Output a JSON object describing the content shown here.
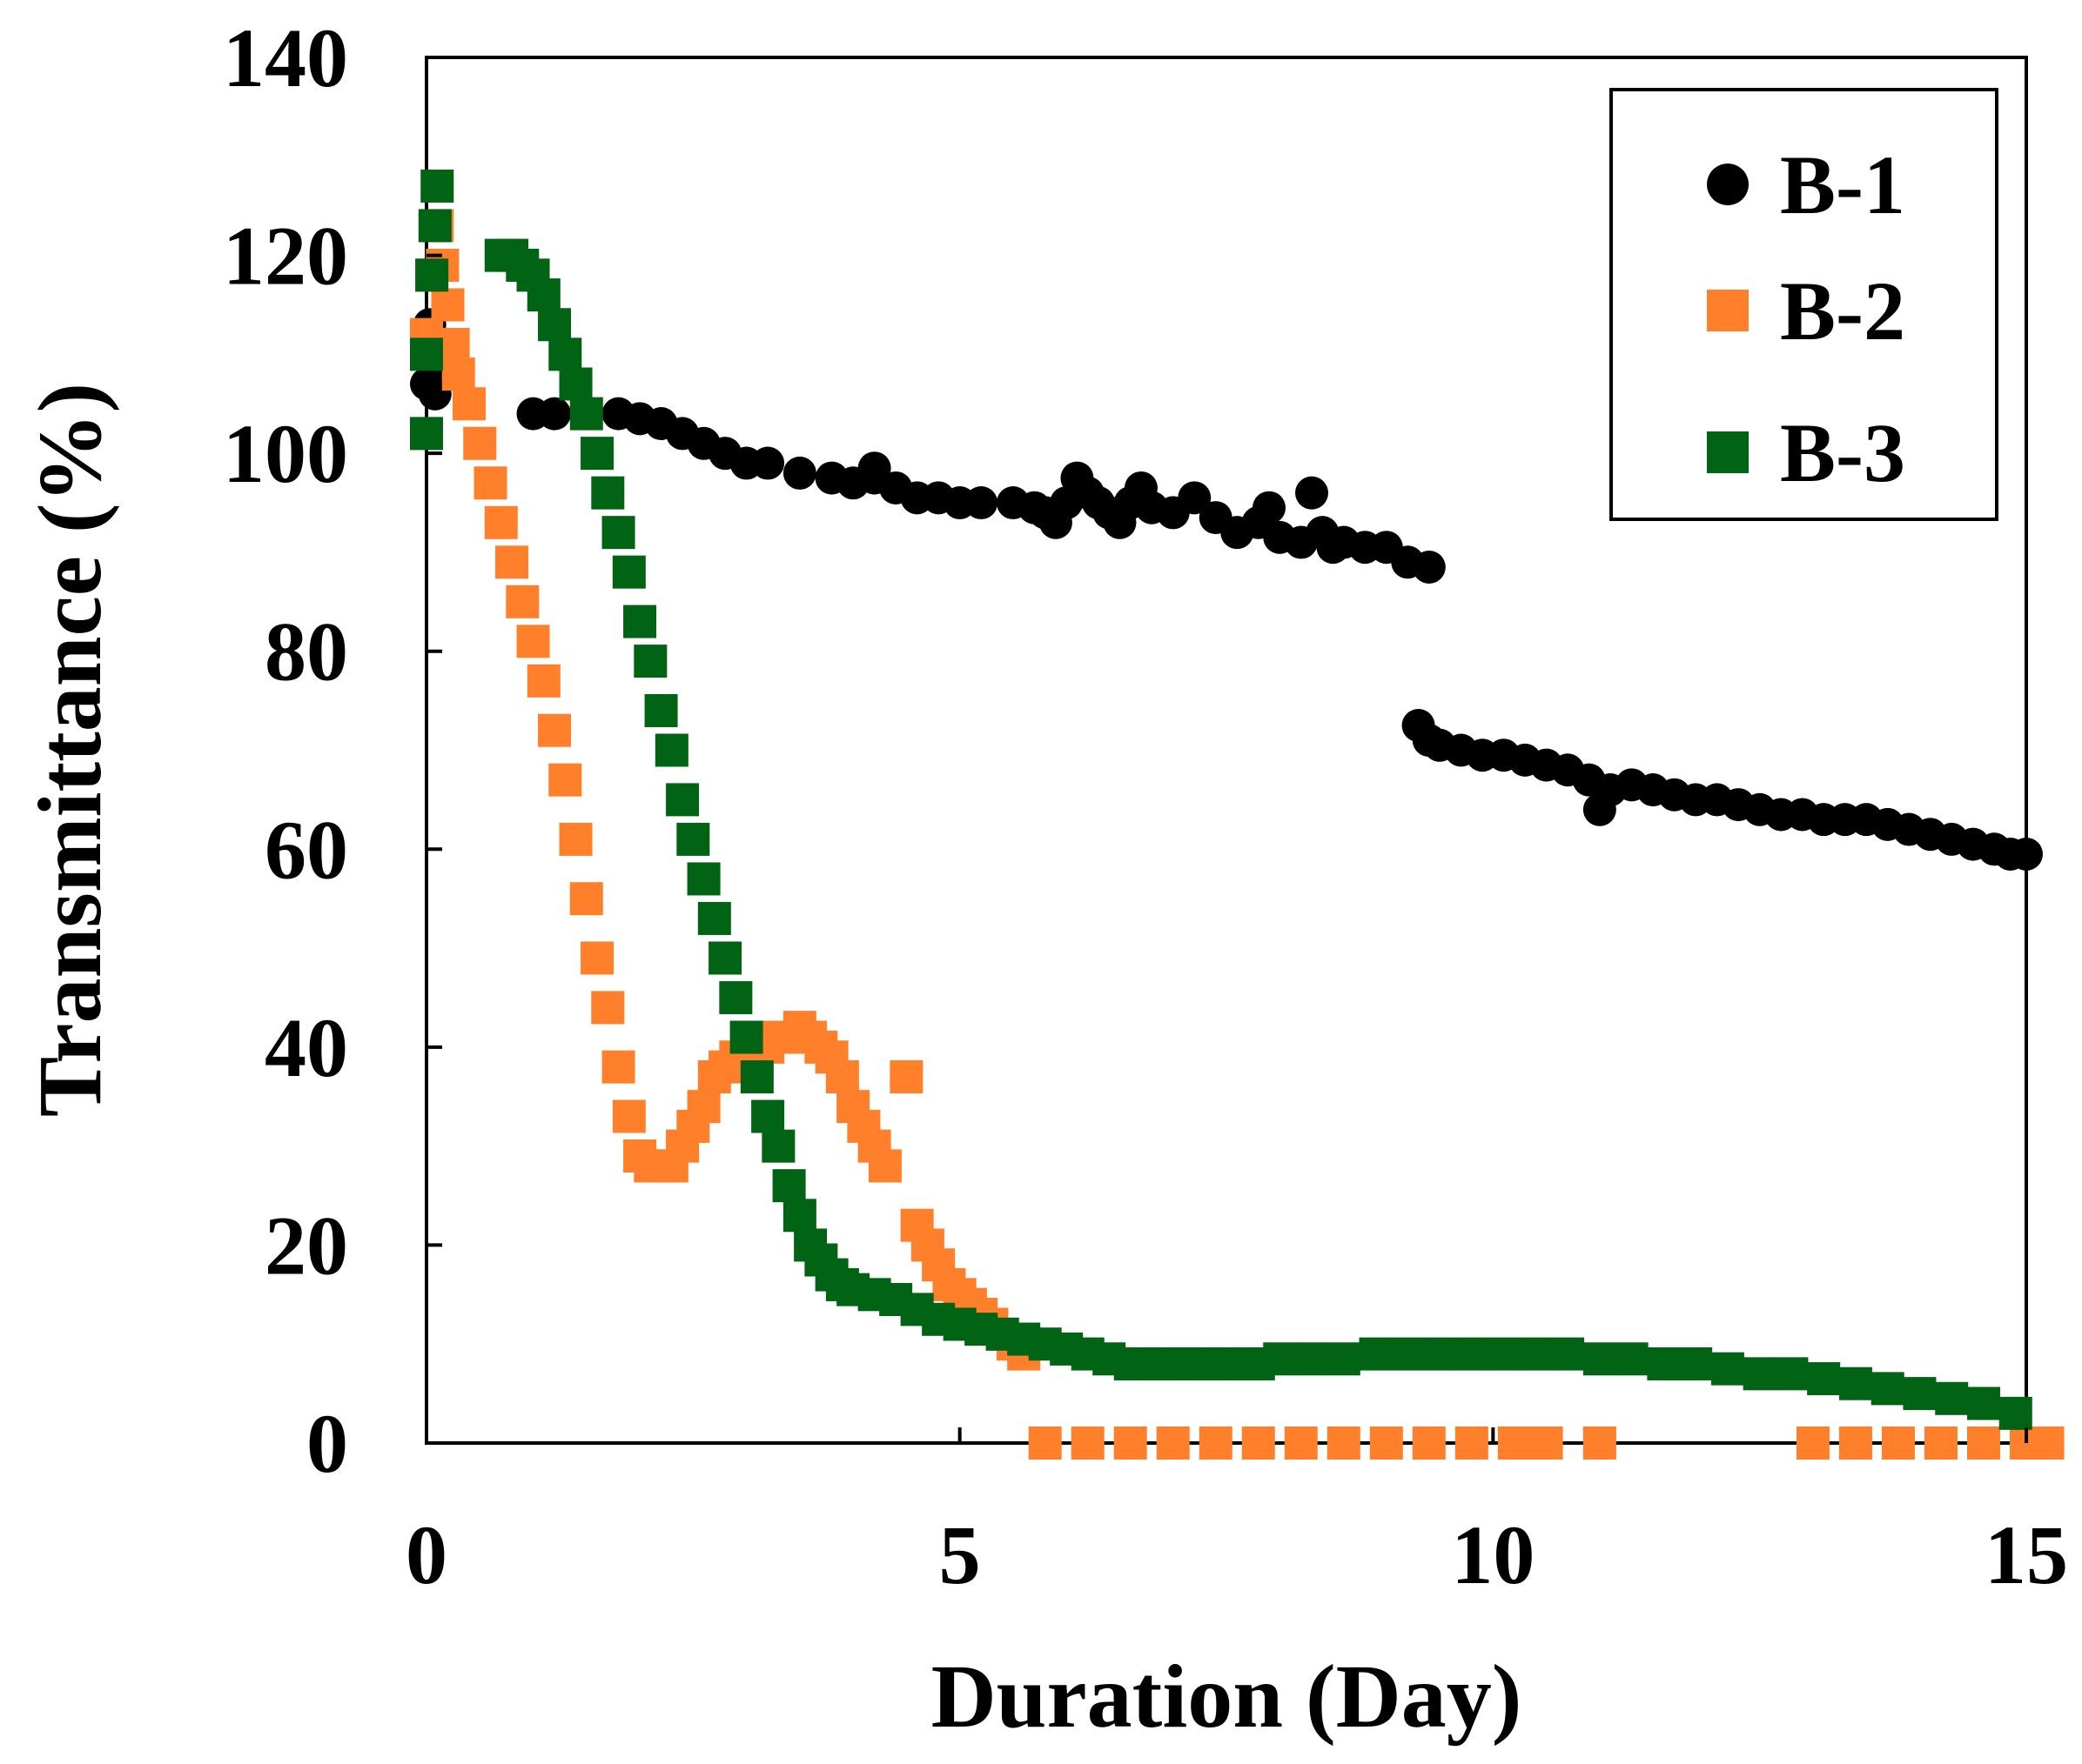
{
  "chart_data": {
    "type": "scatter",
    "xlabel": "Duration (Day)",
    "ylabel": "Transmittance (%)",
    "xlim": [
      0,
      15
    ],
    "ylim": [
      0,
      140
    ],
    "xticks": [
      0,
      5,
      10,
      15
    ],
    "yticks": [
      0,
      20,
      40,
      60,
      80,
      100,
      120,
      140
    ],
    "grid": false,
    "legend_position": "top-right",
    "series": [
      {
        "name": "B-1",
        "marker": "circle",
        "color": "#000000",
        "points": [
          [
            0.0,
            107
          ],
          [
            0.03,
            113
          ],
          [
            0.05,
            109
          ],
          [
            0.08,
            106
          ],
          [
            1.0,
            104
          ],
          [
            1.2,
            104
          ],
          [
            1.5,
            104
          ],
          [
            1.8,
            104
          ],
          [
            2.0,
            103.5
          ],
          [
            2.2,
            103
          ],
          [
            2.4,
            102
          ],
          [
            2.6,
            101
          ],
          [
            2.8,
            100
          ],
          [
            3.0,
            99
          ],
          [
            3.2,
            99
          ],
          [
            3.5,
            98
          ],
          [
            3.8,
            97.5
          ],
          [
            4.0,
            97
          ],
          [
            4.2,
            97.5
          ],
          [
            4.2,
            98.5
          ],
          [
            4.4,
            96.5
          ],
          [
            4.6,
            95.5
          ],
          [
            4.8,
            95.5
          ],
          [
            5.0,
            95
          ],
          [
            5.2,
            95
          ],
          [
            5.5,
            95
          ],
          [
            5.7,
            94.5
          ],
          [
            5.8,
            94
          ],
          [
            5.9,
            93
          ],
          [
            6.0,
            95
          ],
          [
            6.1,
            97.5
          ],
          [
            6.2,
            96
          ],
          [
            6.3,
            95
          ],
          [
            6.4,
            94
          ],
          [
            6.5,
            93
          ],
          [
            6.6,
            95
          ],
          [
            6.7,
            96.5
          ],
          [
            6.8,
            94.5
          ],
          [
            7.0,
            94
          ],
          [
            7.2,
            95.5
          ],
          [
            7.4,
            93.5
          ],
          [
            7.6,
            92
          ],
          [
            7.8,
            93
          ],
          [
            7.9,
            94.5
          ],
          [
            8.0,
            91.5
          ],
          [
            8.2,
            91
          ],
          [
            8.3,
            96
          ],
          [
            8.4,
            92
          ],
          [
            8.5,
            90.5
          ],
          [
            8.6,
            91
          ],
          [
            8.8,
            90.5
          ],
          [
            9.0,
            90.5
          ],
          [
            9.2,
            89
          ],
          [
            9.4,
            88.5
          ],
          [
            9.3,
            72.5
          ],
          [
            9.4,
            71
          ],
          [
            9.5,
            70.5
          ],
          [
            9.7,
            70
          ],
          [
            9.9,
            69.5
          ],
          [
            10.1,
            69.5
          ],
          [
            10.3,
            69
          ],
          [
            10.5,
            68.5
          ],
          [
            10.7,
            68
          ],
          [
            10.9,
            67
          ],
          [
            11.0,
            64
          ],
          [
            11.1,
            66
          ],
          [
            11.3,
            66.5
          ],
          [
            11.5,
            66
          ],
          [
            11.7,
            65.5
          ],
          [
            11.9,
            65
          ],
          [
            12.1,
            65
          ],
          [
            12.3,
            64.5
          ],
          [
            12.5,
            64
          ],
          [
            12.7,
            63.5
          ],
          [
            12.9,
            63.5
          ],
          [
            13.1,
            63
          ],
          [
            13.3,
            63
          ],
          [
            13.5,
            63
          ],
          [
            13.7,
            62.5
          ],
          [
            13.9,
            62
          ],
          [
            14.1,
            61.5
          ],
          [
            14.3,
            61
          ],
          [
            14.5,
            60.5
          ],
          [
            14.7,
            60
          ],
          [
            14.85,
            59.5
          ],
          [
            15.0,
            59.5
          ]
        ]
      },
      {
        "name": "B-2",
        "marker": "square",
        "color": "#FF7F2A",
        "points": [
          [
            0.0,
            112
          ],
          [
            0.05,
            118
          ],
          [
            0.1,
            123
          ],
          [
            0.15,
            119
          ],
          [
            0.2,
            115
          ],
          [
            0.25,
            111
          ],
          [
            0.3,
            108
          ],
          [
            0.4,
            105
          ],
          [
            0.5,
            101
          ],
          [
            0.6,
            97
          ],
          [
            0.7,
            93
          ],
          [
            0.8,
            89
          ],
          [
            0.9,
            85
          ],
          [
            1.0,
            81
          ],
          [
            1.1,
            77
          ],
          [
            1.2,
            72
          ],
          [
            1.3,
            67
          ],
          [
            1.4,
            61
          ],
          [
            1.5,
            55
          ],
          [
            1.6,
            49
          ],
          [
            1.7,
            44
          ],
          [
            1.8,
            38
          ],
          [
            1.9,
            33
          ],
          [
            2.0,
            29
          ],
          [
            2.1,
            28
          ],
          [
            2.2,
            28
          ],
          [
            2.3,
            28
          ],
          [
            2.4,
            30
          ],
          [
            2.5,
            32
          ],
          [
            2.6,
            34
          ],
          [
            2.7,
            37
          ],
          [
            2.8,
            38
          ],
          [
            2.9,
            39
          ],
          [
            3.0,
            39
          ],
          [
            3.1,
            40
          ],
          [
            3.2,
            40
          ],
          [
            3.3,
            41
          ],
          [
            3.4,
            41
          ],
          [
            3.5,
            42
          ],
          [
            3.6,
            41
          ],
          [
            3.7,
            40
          ],
          [
            3.8,
            39
          ],
          [
            3.9,
            37
          ],
          [
            4.0,
            34
          ],
          [
            4.1,
            32
          ],
          [
            4.2,
            30
          ],
          [
            4.3,
            28
          ],
          [
            4.5,
            37
          ],
          [
            4.6,
            22
          ],
          [
            4.7,
            20
          ],
          [
            4.8,
            18
          ],
          [
            4.9,
            16
          ],
          [
            5.0,
            15
          ],
          [
            5.1,
            14
          ],
          [
            5.2,
            13
          ],
          [
            5.3,
            12
          ],
          [
            5.4,
            11
          ],
          [
            5.5,
            10
          ],
          [
            5.6,
            9
          ],
          [
            5.8,
            0
          ],
          [
            6.2,
            0
          ],
          [
            6.6,
            0
          ],
          [
            7.0,
            0
          ],
          [
            7.4,
            0
          ],
          [
            7.8,
            0
          ],
          [
            8.2,
            0
          ],
          [
            8.6,
            0
          ],
          [
            9.0,
            0
          ],
          [
            9.4,
            0
          ],
          [
            9.8,
            0
          ],
          [
            10.2,
            0
          ],
          [
            10.5,
            0
          ],
          [
            11.0,
            0
          ],
          [
            13.0,
            0
          ],
          [
            13.4,
            0
          ],
          [
            13.8,
            0
          ],
          [
            14.2,
            0
          ],
          [
            14.6,
            0
          ],
          [
            15.0,
            0
          ],
          [
            15.2,
            0
          ]
        ]
      },
      {
        "name": "B-3",
        "marker": "square",
        "color": "#006414",
        "points": [
          [
            0.0,
            102
          ],
          [
            0.0,
            110
          ],
          [
            0.05,
            118
          ],
          [
            0.08,
            123
          ],
          [
            0.1,
            127
          ],
          [
            0.7,
            120
          ],
          [
            0.8,
            120
          ],
          [
            0.9,
            119
          ],
          [
            1.0,
            118
          ],
          [
            1.1,
            116
          ],
          [
            1.2,
            113
          ],
          [
            1.3,
            110
          ],
          [
            1.4,
            107
          ],
          [
            1.5,
            104
          ],
          [
            1.6,
            100
          ],
          [
            1.7,
            96
          ],
          [
            1.8,
            92
          ],
          [
            1.9,
            88
          ],
          [
            2.0,
            83
          ],
          [
            2.1,
            79
          ],
          [
            2.2,
            74
          ],
          [
            2.3,
            70
          ],
          [
            2.4,
            65
          ],
          [
            2.5,
            61
          ],
          [
            2.6,
            57
          ],
          [
            2.7,
            53
          ],
          [
            2.8,
            49
          ],
          [
            2.9,
            45
          ],
          [
            3.0,
            41
          ],
          [
            3.1,
            37
          ],
          [
            3.2,
            33
          ],
          [
            3.3,
            30
          ],
          [
            3.4,
            26
          ],
          [
            3.5,
            23
          ],
          [
            3.6,
            20
          ],
          [
            3.7,
            18.5
          ],
          [
            3.8,
            17
          ],
          [
            3.9,
            16
          ],
          [
            4.0,
            15.5
          ],
          [
            4.2,
            15
          ],
          [
            4.4,
            14.5
          ],
          [
            4.6,
            13.5
          ],
          [
            4.8,
            12.5
          ],
          [
            5.0,
            12
          ],
          [
            5.2,
            11.5
          ],
          [
            5.4,
            11
          ],
          [
            5.6,
            10.5
          ],
          [
            5.8,
            10
          ],
          [
            6.0,
            9.5
          ],
          [
            6.2,
            9
          ],
          [
            6.4,
            8.5
          ],
          [
            6.6,
            8
          ],
          [
            6.8,
            8
          ],
          [
            7.0,
            8
          ],
          [
            7.2,
            8
          ],
          [
            7.4,
            8
          ],
          [
            7.6,
            8
          ],
          [
            7.8,
            8
          ],
          [
            8.0,
            8.5
          ],
          [
            8.3,
            8.5
          ],
          [
            8.6,
            8.5
          ],
          [
            8.9,
            9
          ],
          [
            9.2,
            9
          ],
          [
            9.5,
            9
          ],
          [
            9.8,
            9
          ],
          [
            10.1,
            9
          ],
          [
            10.4,
            9
          ],
          [
            10.7,
            9
          ],
          [
            11.0,
            8.5
          ],
          [
            11.3,
            8.5
          ],
          [
            11.6,
            8
          ],
          [
            11.9,
            8
          ],
          [
            12.2,
            7.5
          ],
          [
            12.5,
            7
          ],
          [
            12.8,
            7
          ],
          [
            13.1,
            6.5
          ],
          [
            13.4,
            6
          ],
          [
            13.7,
            5.5
          ],
          [
            14.0,
            5
          ],
          [
            14.3,
            4.5
          ],
          [
            14.6,
            4
          ],
          [
            14.9,
            3
          ]
        ]
      }
    ]
  }
}
